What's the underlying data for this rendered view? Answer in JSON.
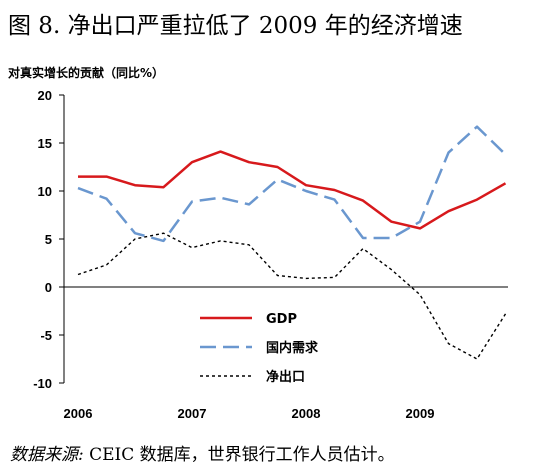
{
  "figure": {
    "title": "图 8. 净出口严重拉低了 2009 年的经济增速",
    "source_label": "数据来源:",
    "source_text": "CEIC 数据库，世界银行工作人员估计。"
  },
  "chart_data": {
    "type": "line",
    "title": "图 8. 净出口严重拉低了 2009 年的经济增速",
    "ylabel": "对真实增长的贡献（同比%）",
    "xlabel": "",
    "ylim": [
      -10,
      20
    ],
    "yticks": [
      -10,
      -5,
      0,
      5,
      10,
      15,
      20
    ],
    "x_tick_labels": [
      "2006",
      "2007",
      "2008",
      "2009"
    ],
    "x": [
      "2006Q1",
      "2006Q2",
      "2006Q3",
      "2006Q4",
      "2007Q1",
      "2007Q2",
      "2007Q3",
      "2007Q4",
      "2008Q1",
      "2008Q2",
      "2008Q3",
      "2008Q4",
      "2009Q1",
      "2009Q2",
      "2009Q3",
      "2009Q4"
    ],
    "grid": false,
    "legend_position": "bottom-center",
    "series": [
      {
        "name": "GDP",
        "color": "#d7191c",
        "style": "solid",
        "values": [
          11.5,
          11.5,
          10.6,
          10.4,
          13.0,
          14.1,
          13.0,
          12.5,
          10.6,
          10.1,
          9.0,
          6.8,
          6.1,
          7.9,
          9.1,
          10.8
        ]
      },
      {
        "name": "国内需求",
        "color": "#6a97cf",
        "style": "dashed",
        "values": [
          10.3,
          9.2,
          5.6,
          4.8,
          8.9,
          9.3,
          8.6,
          11.2,
          10.0,
          9.1,
          5.1,
          5.1,
          6.8,
          14.0,
          16.7,
          13.8
        ]
      },
      {
        "name": "净出口",
        "color": "#000000",
        "style": "dotted",
        "values": [
          1.3,
          2.3,
          5.0,
          5.6,
          4.1,
          4.8,
          4.4,
          1.2,
          0.9,
          1.0,
          4.0,
          1.8,
          -0.8,
          -5.9,
          -7.5,
          -2.8
        ]
      }
    ]
  }
}
